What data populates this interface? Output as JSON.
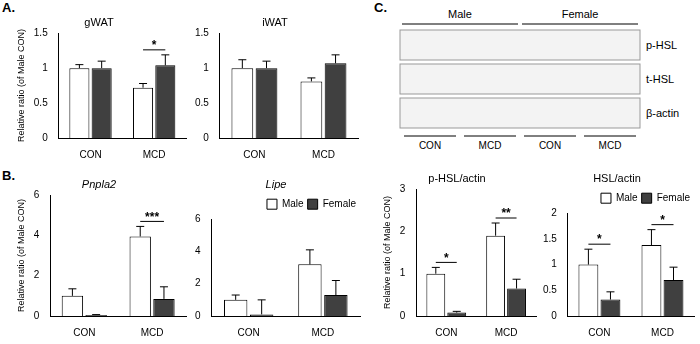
{
  "figure": {
    "panel_labels": [
      "A.",
      "B.",
      "C."
    ],
    "blot": {
      "groups": [
        "Male",
        "Female"
      ],
      "rows": [
        "p-HSL",
        "t-HSL",
        "β-actin"
      ],
      "lanes": [
        "CON",
        "MCD",
        "CON",
        "MCD"
      ]
    }
  },
  "chart_data": [
    {
      "type": "bar",
      "title": "gWAT",
      "y_label": "Relative ratio (of Male CON)",
      "categories": [
        "CON",
        "MCD"
      ],
      "series": [
        {
          "name": "Male",
          "color": "#ffffff",
          "values": [
            1.0,
            0.72
          ],
          "errors": [
            0.05,
            0.06
          ]
        },
        {
          "name": "Female",
          "color": "#404040",
          "values": [
            1.0,
            1.04
          ],
          "errors": [
            0.1,
            0.15
          ]
        }
      ],
      "ylim": [
        0,
        1.5
      ],
      "yticks": [
        0,
        0.5,
        1,
        1.5
      ],
      "grid": false,
      "annotations": [
        {
          "category": "MCD",
          "text": "*"
        }
      ]
    },
    {
      "type": "bar",
      "title": "iWAT",
      "categories": [
        "CON",
        "MCD"
      ],
      "series": [
        {
          "name": "Male",
          "color": "#ffffff",
          "values": [
            1.0,
            0.81
          ],
          "errors": [
            0.12,
            0.05
          ]
        },
        {
          "name": "Female",
          "color": "#404040",
          "values": [
            1.0,
            1.07
          ],
          "errors": [
            0.1,
            0.12
          ]
        }
      ],
      "ylim": [
        0,
        1.5
      ],
      "yticks": [
        0,
        0.5,
        1,
        1.5
      ],
      "grid": false,
      "annotations": []
    },
    {
      "type": "bar",
      "title": "Pnpla2",
      "y_label": "Relative ratio (of Male CON)",
      "categories": [
        "CON",
        "MCD"
      ],
      "series": [
        {
          "name": "Male",
          "color": "#ffffff",
          "values": [
            1.0,
            3.95
          ],
          "errors": [
            0.35,
            0.5
          ]
        },
        {
          "name": "Female",
          "color": "#404040",
          "values": [
            0.05,
            0.85
          ],
          "errors": [
            0.02,
            0.6
          ]
        }
      ],
      "ylim": [
        0,
        6
      ],
      "yticks": [
        0,
        2,
        4,
        6
      ],
      "grid": false,
      "annotations": [
        {
          "category": "MCD",
          "text": "***"
        }
      ]
    },
    {
      "type": "bar",
      "title": "Lipe",
      "categories": [
        "CON",
        "MCD"
      ],
      "series": [
        {
          "name": "Male",
          "color": "#ffffff",
          "values": [
            1.0,
            3.2
          ],
          "errors": [
            0.3,
            0.9
          ]
        },
        {
          "name": "Female",
          "color": "#404040",
          "values": [
            0.1,
            1.3
          ],
          "errors": [
            0.9,
            0.9
          ]
        }
      ],
      "ylim": [
        0,
        6
      ],
      "yticks": [
        0,
        2,
        4,
        6
      ],
      "grid": false,
      "legend": "top-right",
      "annotations": []
    },
    {
      "type": "bar",
      "title": "p-HSL/actin",
      "y_label": "Relative ratio (of Male CON)",
      "categories": [
        "CON",
        "MCD"
      ],
      "series": [
        {
          "name": "Male",
          "color": "#ffffff",
          "values": [
            1.0,
            1.9
          ],
          "errors": [
            0.15,
            0.3
          ]
        },
        {
          "name": "Female",
          "color": "#404040",
          "values": [
            0.08,
            0.65
          ],
          "errors": [
            0.03,
            0.22
          ]
        }
      ],
      "ylim": [
        0,
        3
      ],
      "yticks": [
        0,
        1,
        2,
        3
      ],
      "grid": false,
      "annotations": [
        {
          "category": "CON",
          "text": "*"
        },
        {
          "category": "MCD",
          "text": "**"
        }
      ]
    },
    {
      "type": "bar",
      "title": "HSL/actin",
      "categories": [
        "CON",
        "MCD"
      ],
      "series": [
        {
          "name": "Male",
          "color": "#ffffff",
          "values": [
            1.0,
            1.38
          ],
          "errors": [
            0.3,
            0.3
          ]
        },
        {
          "name": "Female",
          "color": "#404040",
          "values": [
            0.32,
            0.7
          ],
          "errors": [
            0.15,
            0.25
          ]
        }
      ],
      "ylim": [
        0,
        2
      ],
      "yticks": [
        0,
        0.5,
        1,
        1.5,
        2
      ],
      "grid": false,
      "legend": "top-right",
      "annotations": [
        {
          "category": "CON",
          "text": "*"
        },
        {
          "category": "MCD",
          "text": "*"
        }
      ]
    }
  ]
}
